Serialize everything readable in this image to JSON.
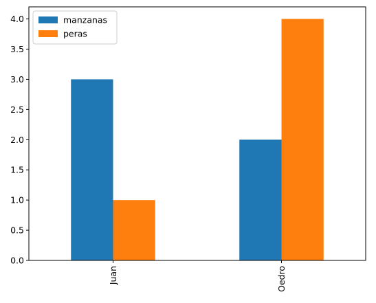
{
  "chart_data": {
    "type": "bar",
    "categories": [
      "Juan",
      "Oedro"
    ],
    "series": [
      {
        "name": "manzanas",
        "values": [
          3,
          2
        ],
        "color": "#1f77b4"
      },
      {
        "name": "peras",
        "values": [
          1,
          4
        ],
        "color": "#ff7f0e"
      }
    ],
    "ylim": [
      0,
      4.2
    ],
    "yticks": [
      "0.0",
      "0.5",
      "1.0",
      "1.5",
      "2.0",
      "2.5",
      "3.0",
      "3.5",
      "4.0"
    ],
    "grid": false,
    "legend_position": "top-left",
    "xtick_rotation": "vertical"
  }
}
